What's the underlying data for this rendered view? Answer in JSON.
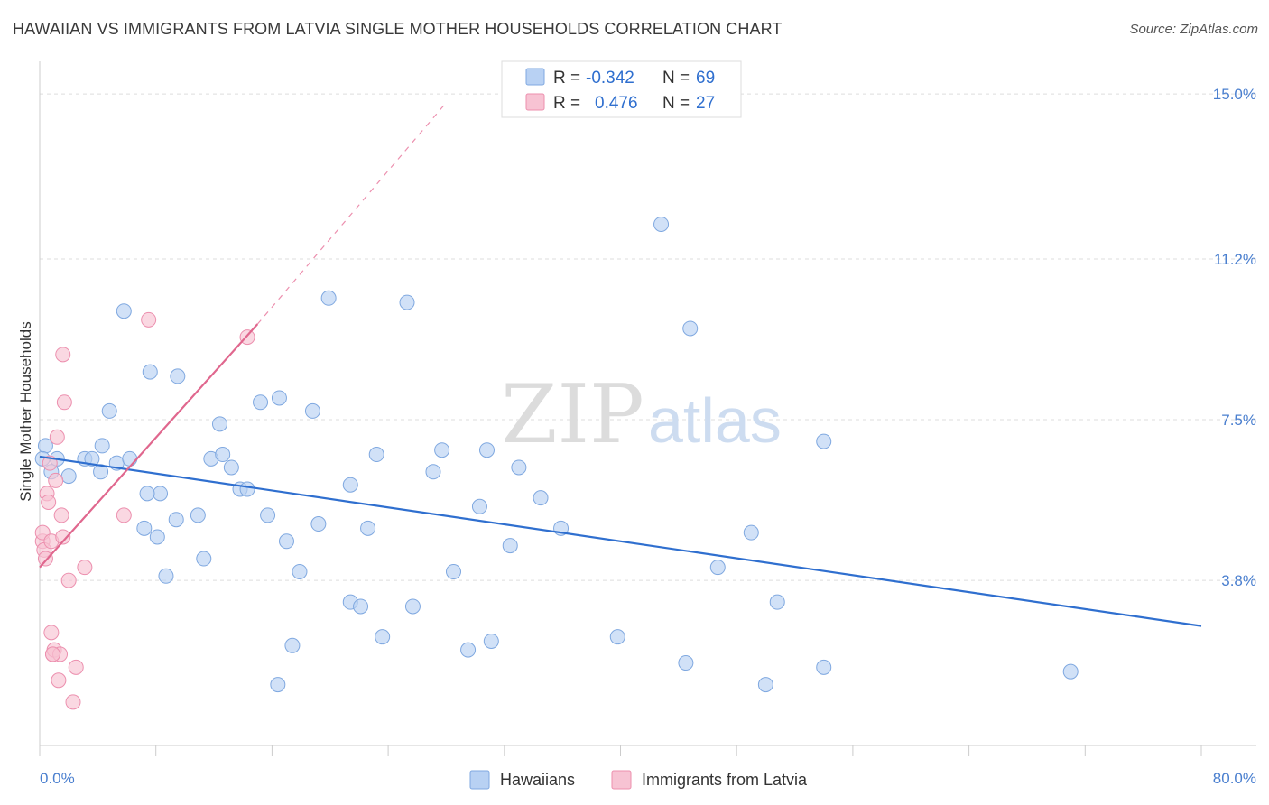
{
  "title": "HAWAIIAN VS IMMIGRANTS FROM LATVIA SINGLE MOTHER HOUSEHOLDS CORRELATION CHART",
  "source": "Source: ZipAtlas.com",
  "watermark": {
    "zip": "ZIP",
    "atlas": "atlas"
  },
  "legend_top": {
    "rows": [
      {
        "r_label": "R =",
        "r_value": "-0.342",
        "n_label": "N =",
        "n_value": "69"
      },
      {
        "r_label": "R =",
        "r_value": "0.476",
        "n_label": "N =",
        "n_value": "27"
      }
    ]
  },
  "colors": {
    "blue_fill": "#b8d1f3",
    "blue_stroke": "#7fa8e0",
    "blue_line": "#2f6fcf",
    "pink_fill": "#f7c3d3",
    "pink_stroke": "#ec8fae",
    "pink_line": "#e0678e",
    "grid": "#dddddd",
    "axis_text": "#4a7fcf"
  },
  "chart_data": {
    "type": "scatter",
    "title": "HAWAIIAN VS IMMIGRANTS FROM LATVIA SINGLE MOTHER HOUSEHOLDS CORRELATION CHART",
    "xlabel": "",
    "ylabel": "Single Mother Households",
    "xlim": [
      0,
      80
    ],
    "ylim": [
      0,
      15.5
    ],
    "x_tick_labels": [
      "0.0%",
      "80.0%"
    ],
    "y_ticks": [
      3.8,
      7.5,
      11.2,
      15.0
    ],
    "y_tick_labels": [
      "3.8%",
      "7.5%",
      "11.2%",
      "15.0%"
    ],
    "grid": true,
    "legend_position": "bottom",
    "series": [
      {
        "name": "Hawaiians",
        "color": "#b8d1f3",
        "points": [
          [
            0.4,
            6.9
          ],
          [
            0.8,
            6.3
          ],
          [
            1.2,
            6.6
          ],
          [
            2.0,
            6.2
          ],
          [
            3.1,
            6.6
          ],
          [
            4.2,
            6.3
          ],
          [
            3.6,
            6.6
          ],
          [
            4.3,
            6.9
          ],
          [
            4.8,
            7.7
          ],
          [
            5.3,
            6.5
          ],
          [
            6.2,
            6.6
          ],
          [
            5.8,
            10.0
          ],
          [
            7.6,
            8.6
          ],
          [
            9.5,
            8.5
          ],
          [
            8.3,
            5.8
          ],
          [
            8.1,
            4.8
          ],
          [
            7.4,
            5.8
          ],
          [
            7.2,
            5.0
          ],
          [
            8.7,
            3.9
          ],
          [
            9.4,
            5.2
          ],
          [
            10.9,
            5.3
          ],
          [
            11.3,
            4.3
          ],
          [
            11.8,
            6.6
          ],
          [
            12.4,
            7.4
          ],
          [
            12.6,
            6.7
          ],
          [
            13.2,
            6.4
          ],
          [
            13.8,
            5.9
          ],
          [
            14.3,
            5.9
          ],
          [
            15.2,
            7.9
          ],
          [
            15.7,
            5.3
          ],
          [
            16.5,
            8.0
          ],
          [
            16.4,
            1.4
          ],
          [
            17.0,
            4.7
          ],
          [
            17.4,
            2.3
          ],
          [
            17.9,
            4.0
          ],
          [
            18.8,
            7.7
          ],
          [
            19.2,
            5.1
          ],
          [
            19.9,
            10.3
          ],
          [
            21.4,
            6.0
          ],
          [
            21.4,
            3.3
          ],
          [
            22.1,
            3.2
          ],
          [
            22.6,
            5.0
          ],
          [
            23.2,
            6.7
          ],
          [
            23.6,
            2.5
          ],
          [
            25.3,
            10.2
          ],
          [
            25.7,
            3.2
          ],
          [
            27.1,
            6.3
          ],
          [
            27.7,
            6.8
          ],
          [
            28.5,
            4.0
          ],
          [
            29.5,
            2.2
          ],
          [
            30.3,
            5.5
          ],
          [
            30.8,
            6.8
          ],
          [
            31.1,
            2.4
          ],
          [
            32.4,
            4.6
          ],
          [
            33.0,
            6.4
          ],
          [
            34.5,
            5.7
          ],
          [
            35.9,
            5.0
          ],
          [
            39.8,
            2.5
          ],
          [
            42.8,
            12.0
          ],
          [
            44.8,
            9.6
          ],
          [
            44.5,
            1.9
          ],
          [
            46.7,
            4.1
          ],
          [
            49.0,
            4.9
          ],
          [
            50.0,
            1.4
          ],
          [
            50.8,
            3.3
          ],
          [
            54.0,
            7.0
          ],
          [
            54.0,
            1.8
          ],
          [
            71.0,
            1.7
          ],
          [
            0.2,
            6.6
          ]
        ]
      },
      {
        "name": "Immigrants from Latvia",
        "color": "#f7c3d3",
        "points": [
          [
            0.2,
            4.7
          ],
          [
            0.2,
            4.9
          ],
          [
            0.3,
            4.5
          ],
          [
            0.4,
            4.3
          ],
          [
            0.5,
            5.8
          ],
          [
            0.6,
            5.6
          ],
          [
            0.7,
            6.5
          ],
          [
            0.8,
            4.7
          ],
          [
            0.8,
            2.6
          ],
          [
            0.9,
            2.1
          ],
          [
            1.0,
            2.2
          ],
          [
            1.1,
            6.1
          ],
          [
            1.2,
            7.1
          ],
          [
            1.3,
            1.5
          ],
          [
            1.4,
            2.1
          ],
          [
            1.5,
            5.3
          ],
          [
            1.6,
            9.0
          ],
          [
            1.6,
            4.8
          ],
          [
            1.7,
            7.9
          ],
          [
            2.0,
            3.8
          ],
          [
            2.3,
            1.0
          ],
          [
            2.5,
            1.8
          ],
          [
            3.1,
            4.1
          ],
          [
            5.8,
            5.3
          ],
          [
            7.5,
            9.8
          ],
          [
            14.3,
            9.4
          ],
          [
            0.9,
            2.1
          ]
        ]
      }
    ],
    "trend_lines": [
      {
        "series": "Hawaiians",
        "x": [
          0,
          80
        ],
        "y": [
          6.65,
          2.75
        ]
      },
      {
        "series": "Immigrants from Latvia",
        "x": [
          0,
          15
        ],
        "y": [
          4.1,
          9.7
        ],
        "dashed_extension_to": [
          28,
          14.8
        ]
      }
    ]
  },
  "bottom_legend": [
    {
      "label": "Hawaiians"
    },
    {
      "label": "Immigrants from Latvia"
    }
  ]
}
